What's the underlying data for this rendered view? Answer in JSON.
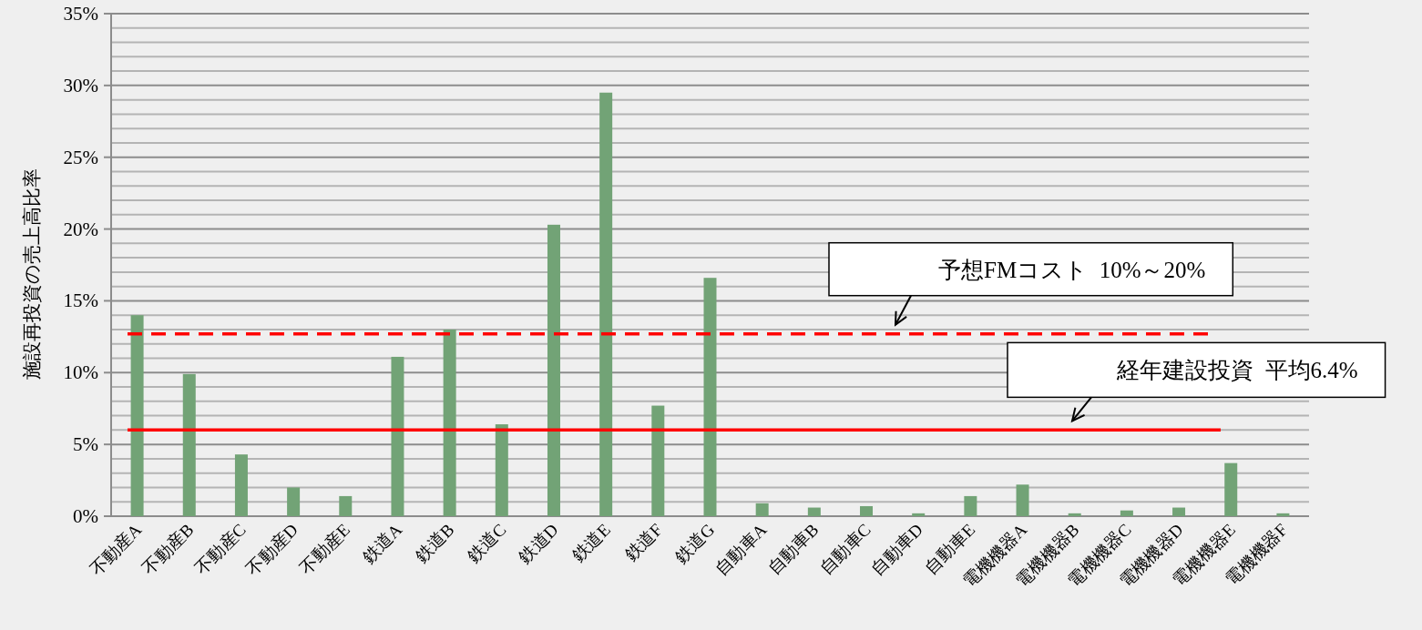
{
  "chart_data": {
    "type": "bar",
    "ylabel": "施設再投資の売上高比率",
    "categories": [
      "不動産A",
      "不動産B",
      "不動産C",
      "不動産D",
      "不動産E",
      "鉄道A",
      "鉄道B",
      "鉄道C",
      "鉄道D",
      "鉄道E",
      "鉄道F",
      "鉄道G",
      "自動車A",
      "自動車B",
      "自動車C",
      "自動車D",
      "自動車E",
      "電機機器A",
      "電機機器B",
      "電機機器C",
      "電機機器D",
      "電機機器E",
      "電機機器F"
    ],
    "values": [
      14.0,
      9.9,
      4.3,
      2.0,
      1.4,
      11.1,
      13.0,
      6.4,
      20.3,
      29.5,
      7.7,
      16.6,
      0.9,
      0.6,
      0.7,
      0.2,
      1.4,
      2.2,
      0.2,
      0.4,
      0.6,
      3.7,
      0.2
    ],
    "color": "#72a376",
    "ylim": [
      0,
      35
    ],
    "yticks": [
      {
        "value": 0,
        "label": "0%"
      },
      {
        "value": 5,
        "label": "5%"
      },
      {
        "value": 10,
        "label": "10%"
      },
      {
        "value": 15,
        "label": "15%"
      },
      {
        "value": 20,
        "label": "20%"
      },
      {
        "value": 25,
        "label": "25%"
      },
      {
        "value": 30,
        "label": "30%"
      },
      {
        "value": 35,
        "label": "35%"
      }
    ],
    "grid": "y",
    "ref_lines": [
      {
        "axis": "y",
        "value": 12.7,
        "label": "予想FMコスト  10%～20%",
        "color": "#ff0000",
        "line_style": "dashed"
      },
      {
        "axis": "y",
        "value": 6.0,
        "label": "経年建設投資  平均6.4%",
        "color": "#ff0000",
        "line_style": "solid"
      }
    ]
  }
}
